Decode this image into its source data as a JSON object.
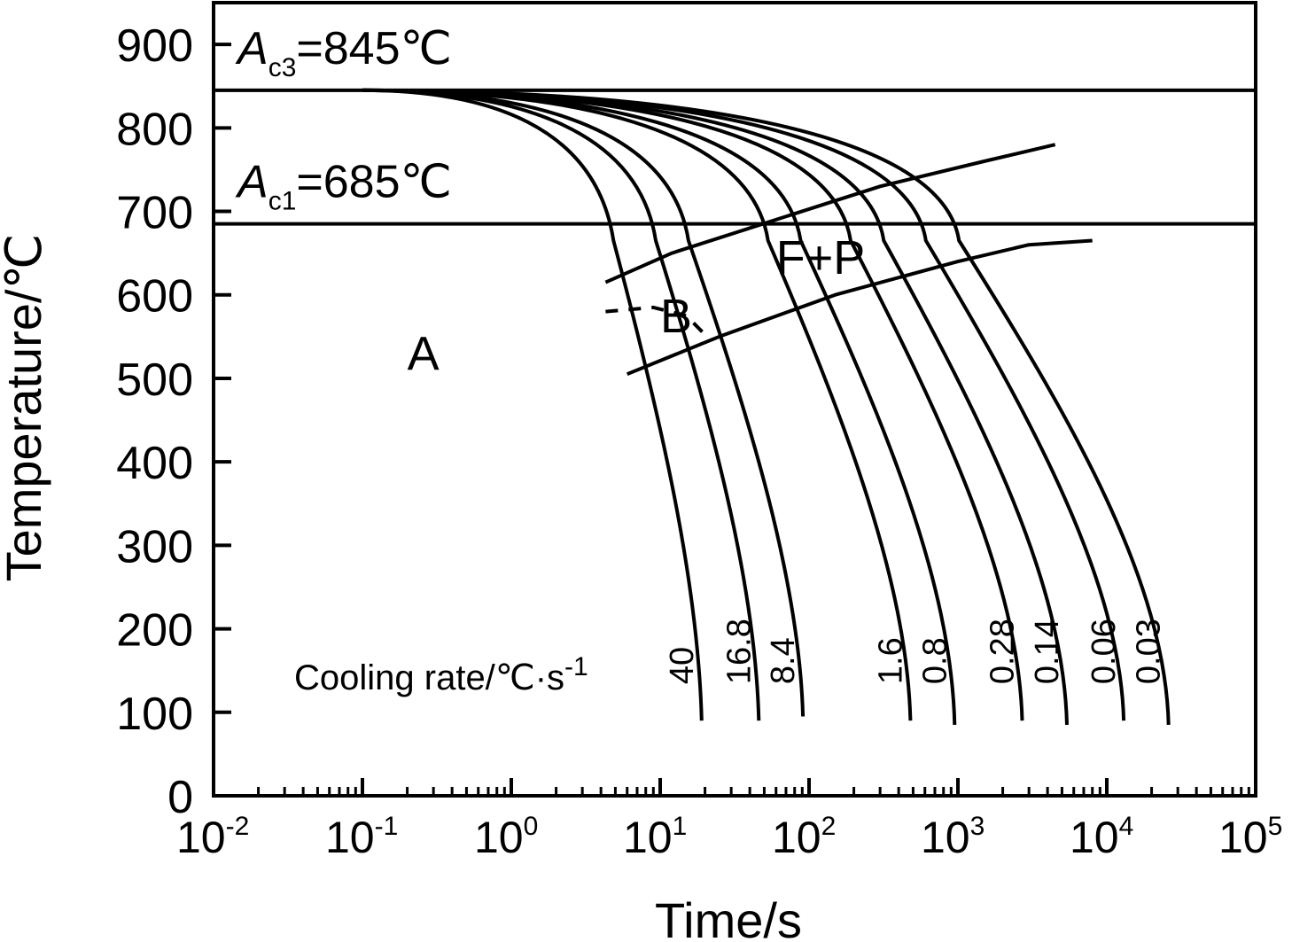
{
  "chart_data": {
    "type": "line",
    "xlabel": "Time/s",
    "ylabel": "Temperature/℃",
    "xscale": "log",
    "xlim": [
      0.01,
      100000
    ],
    "ylim": [
      0,
      950
    ],
    "x_ticks": [
      {
        "base": "10",
        "exp": "-2"
      },
      {
        "base": "10",
        "exp": "-1"
      },
      {
        "base": "10",
        "exp": "0"
      },
      {
        "base": "10",
        "exp": "1"
      },
      {
        "base": "10",
        "exp": "2"
      },
      {
        "base": "10",
        "exp": "3"
      },
      {
        "base": "10",
        "exp": "4"
      },
      {
        "base": "10",
        "exp": "5"
      }
    ],
    "y_ticks": [
      "0",
      "100",
      "200",
      "300",
      "400",
      "500",
      "600",
      "700",
      "800",
      "900"
    ],
    "critical_lines": [
      {
        "symbol": "A",
        "subscript": "c3",
        "text": "=845℃",
        "value": 845
      },
      {
        "symbol": "A",
        "subscript": "c1",
        "text": "=685℃",
        "value": 685
      }
    ],
    "regions": [
      {
        "label": "A",
        "t": 0.2,
        "temp": 510
      },
      {
        "label": "F+P",
        "t": 60,
        "temp": 625
      },
      {
        "label": "B",
        "t": 10,
        "temp": 555
      }
    ],
    "cooling_rate_caption": {
      "text": "Cooling rate/℃·s",
      "sup": "-1"
    },
    "series": [
      {
        "name": "40",
        "t_start": 0.1,
        "t_end": 19,
        "end_temp": 90
      },
      {
        "name": "16.8",
        "t_start": 0.1,
        "t_end": 46,
        "end_temp": 90
      },
      {
        "name": "8.4",
        "t_start": 0.1,
        "t_end": 91,
        "end_temp": 95
      },
      {
        "name": "1.6",
        "t_start": 0.1,
        "t_end": 480,
        "end_temp": 90
      },
      {
        "name": "0.8",
        "t_start": 0.1,
        "t_end": 950,
        "end_temp": 85
      },
      {
        "name": "0.28",
        "t_start": 0.1,
        "t_end": 2700,
        "end_temp": 90
      },
      {
        "name": "0.14",
        "t_start": 0.1,
        "t_end": 5400,
        "end_temp": 85
      },
      {
        "name": "0.06",
        "t_start": 0.1,
        "t_end": 13000,
        "end_temp": 90
      },
      {
        "name": "0.03",
        "t_start": 0.1,
        "t_end": 26000,
        "end_temp": 85
      }
    ],
    "boundaries": [
      {
        "name": "ferrite-start",
        "points": [
          [
            4.3,
            615
          ],
          [
            12,
            650
          ],
          [
            60,
            690
          ],
          [
            300,
            730
          ],
          [
            1500,
            760
          ],
          [
            4500,
            780
          ]
        ]
      },
      {
        "name": "pearlite-finish",
        "points": [
          [
            6,
            505
          ],
          [
            25,
            550
          ],
          [
            150,
            600
          ],
          [
            1000,
            640
          ],
          [
            3000,
            660
          ],
          [
            8000,
            665
          ]
        ]
      },
      {
        "name": "bainite-start",
        "style": "dashed",
        "points": [
          [
            4.3,
            580
          ],
          [
            9,
            585
          ],
          [
            15,
            575
          ],
          [
            22,
            545
          ]
        ]
      }
    ]
  }
}
